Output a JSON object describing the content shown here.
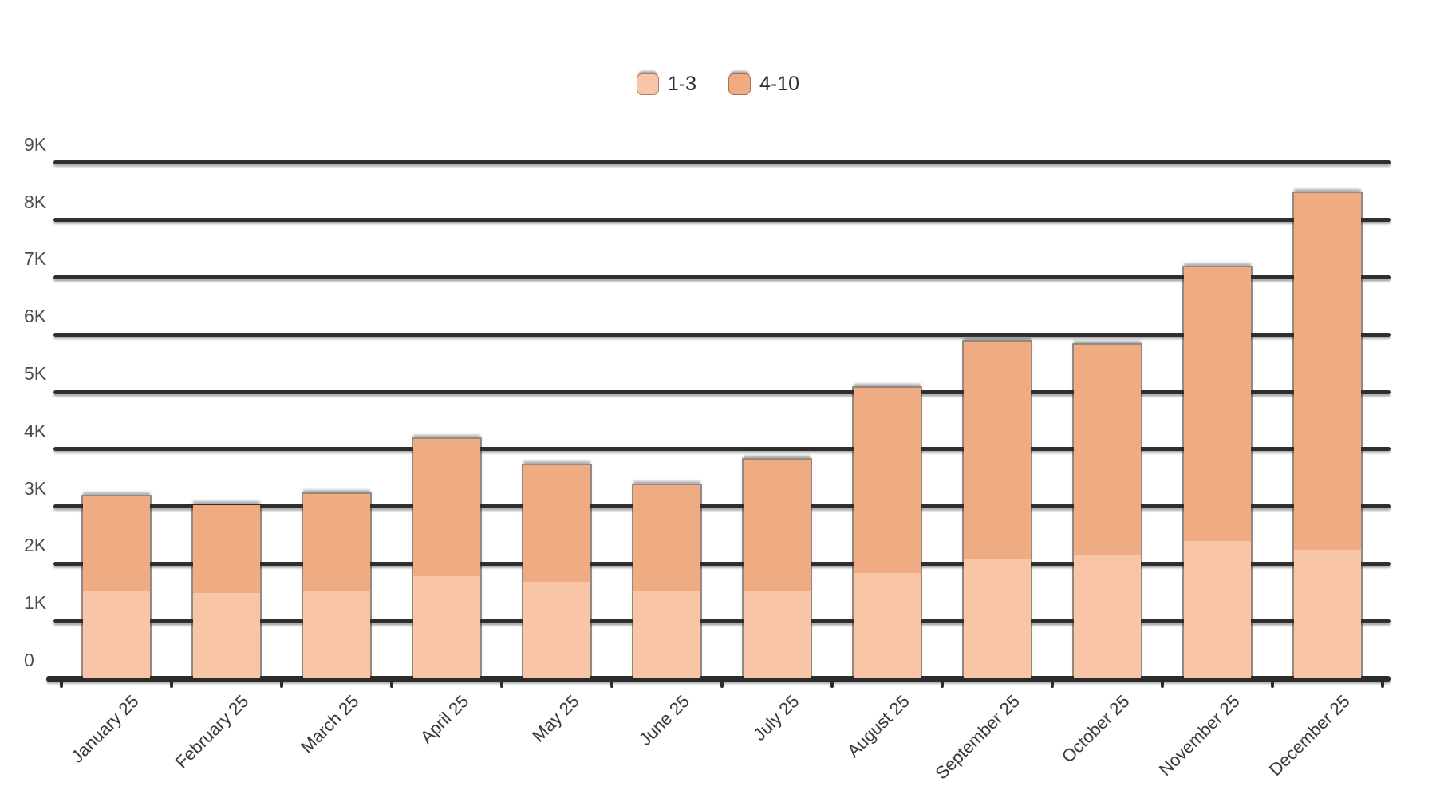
{
  "chart_data": {
    "type": "bar",
    "stacked": true,
    "title": "",
    "xlabel": "",
    "ylabel": "",
    "categories": [
      "January 25",
      "February 25",
      "March 25",
      "April 25",
      "May 25",
      "June 25",
      "July 25",
      "August 25",
      "September 25",
      "October 25",
      "November 25",
      "December 25"
    ],
    "series": [
      {
        "name": "1-3",
        "color": "#f8c5a7",
        "values": [
          1550,
          1500,
          1550,
          1800,
          1700,
          1550,
          1550,
          1850,
          2100,
          2150,
          2400,
          2250
        ]
      },
      {
        "name": "4-10",
        "color": "#efac83",
        "values": [
          1650,
          1550,
          1700,
          2400,
          2050,
          1850,
          2300,
          3250,
          3800,
          3700,
          4800,
          6250
        ]
      }
    ],
    "stack_totals": [
      3200,
      3050,
      3250,
      4200,
      3750,
      3400,
      3850,
      5100,
      5900,
      5850,
      7200,
      8500
    ],
    "y_ticks": [
      {
        "label": "0",
        "value": 0
      },
      {
        "label": "1K",
        "value": 1000
      },
      {
        "label": "2K",
        "value": 2000
      },
      {
        "label": "3K",
        "value": 3000
      },
      {
        "label": "4K",
        "value": 4000
      },
      {
        "label": "5K",
        "value": 5000
      },
      {
        "label": "6K",
        "value": 6000
      },
      {
        "label": "7K",
        "value": 7000
      },
      {
        "label": "8K",
        "value": 8000
      },
      {
        "label": "9K",
        "value": 9000
      }
    ],
    "ylim": [
      0,
      9000
    ],
    "grid": true,
    "legend_position": "top",
    "colors": {
      "background": "#ffffff",
      "gridline": "#2f2f2f",
      "axis_line": "#2c2c2c",
      "tick_text": "#4c4c4c",
      "category_text": "#3a3a3a",
      "legend_text": "#2f2f2f",
      "bar_outline": "#3d2a1e"
    }
  }
}
